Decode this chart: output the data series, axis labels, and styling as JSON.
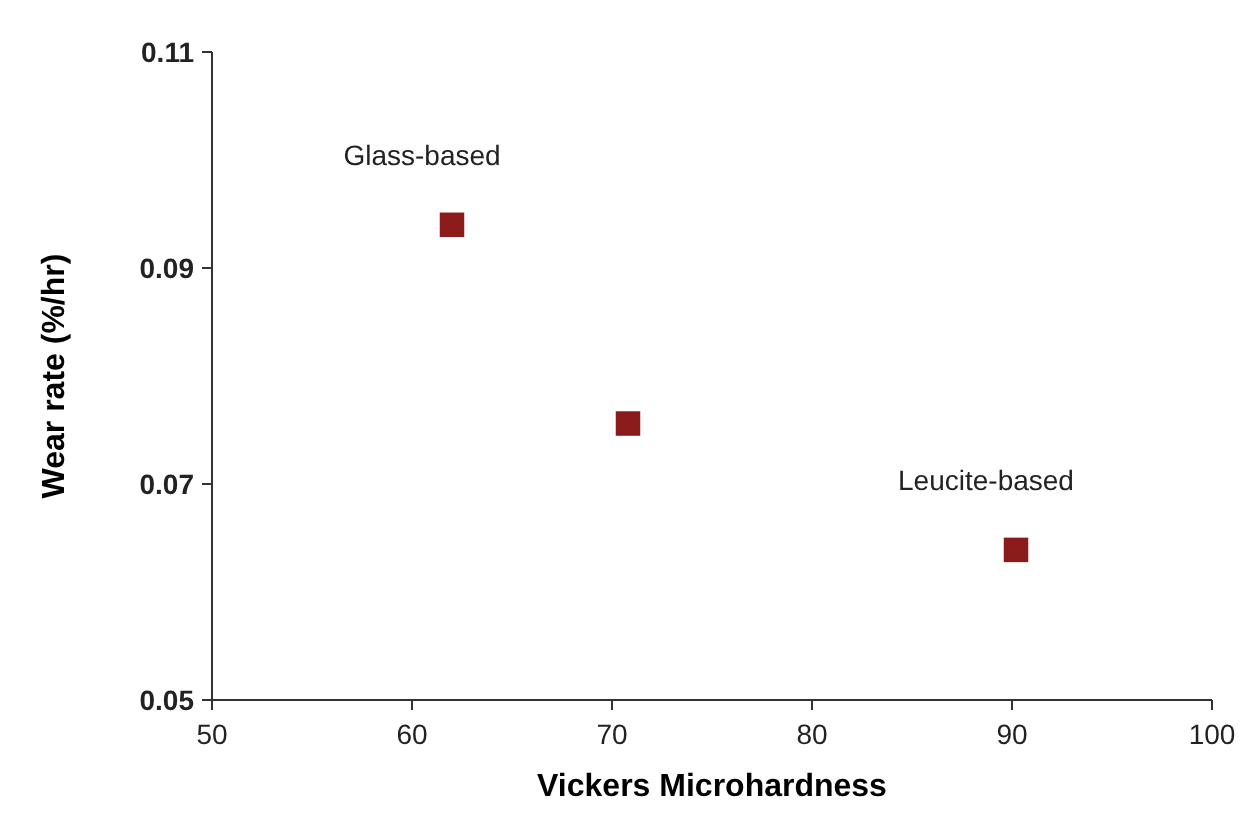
{
  "chart_data": {
    "type": "scatter",
    "xlabel": "Vickers Microhardness",
    "ylabel": "Wear rate (%/hr)",
    "x": [
      62,
      70.8,
      90.2
    ],
    "values": [
      0.094,
      0.0756,
      0.0639
    ],
    "color": "#8b1a1a",
    "marker": "square",
    "xlim": [
      50,
      100
    ],
    "xticks": [
      50,
      60,
      70,
      80,
      90,
      100
    ],
    "ylim": [
      0.05,
      0.11
    ],
    "yticks": [
      0.05,
      0.07,
      0.09,
      0.11
    ],
    "grid": false,
    "annotations": [
      {
        "text": "Glass-based",
        "x": 62,
        "y": 0.094
      },
      {
        "text": "Leucite-based",
        "x": 90.2,
        "y": 0.0639
      }
    ]
  }
}
